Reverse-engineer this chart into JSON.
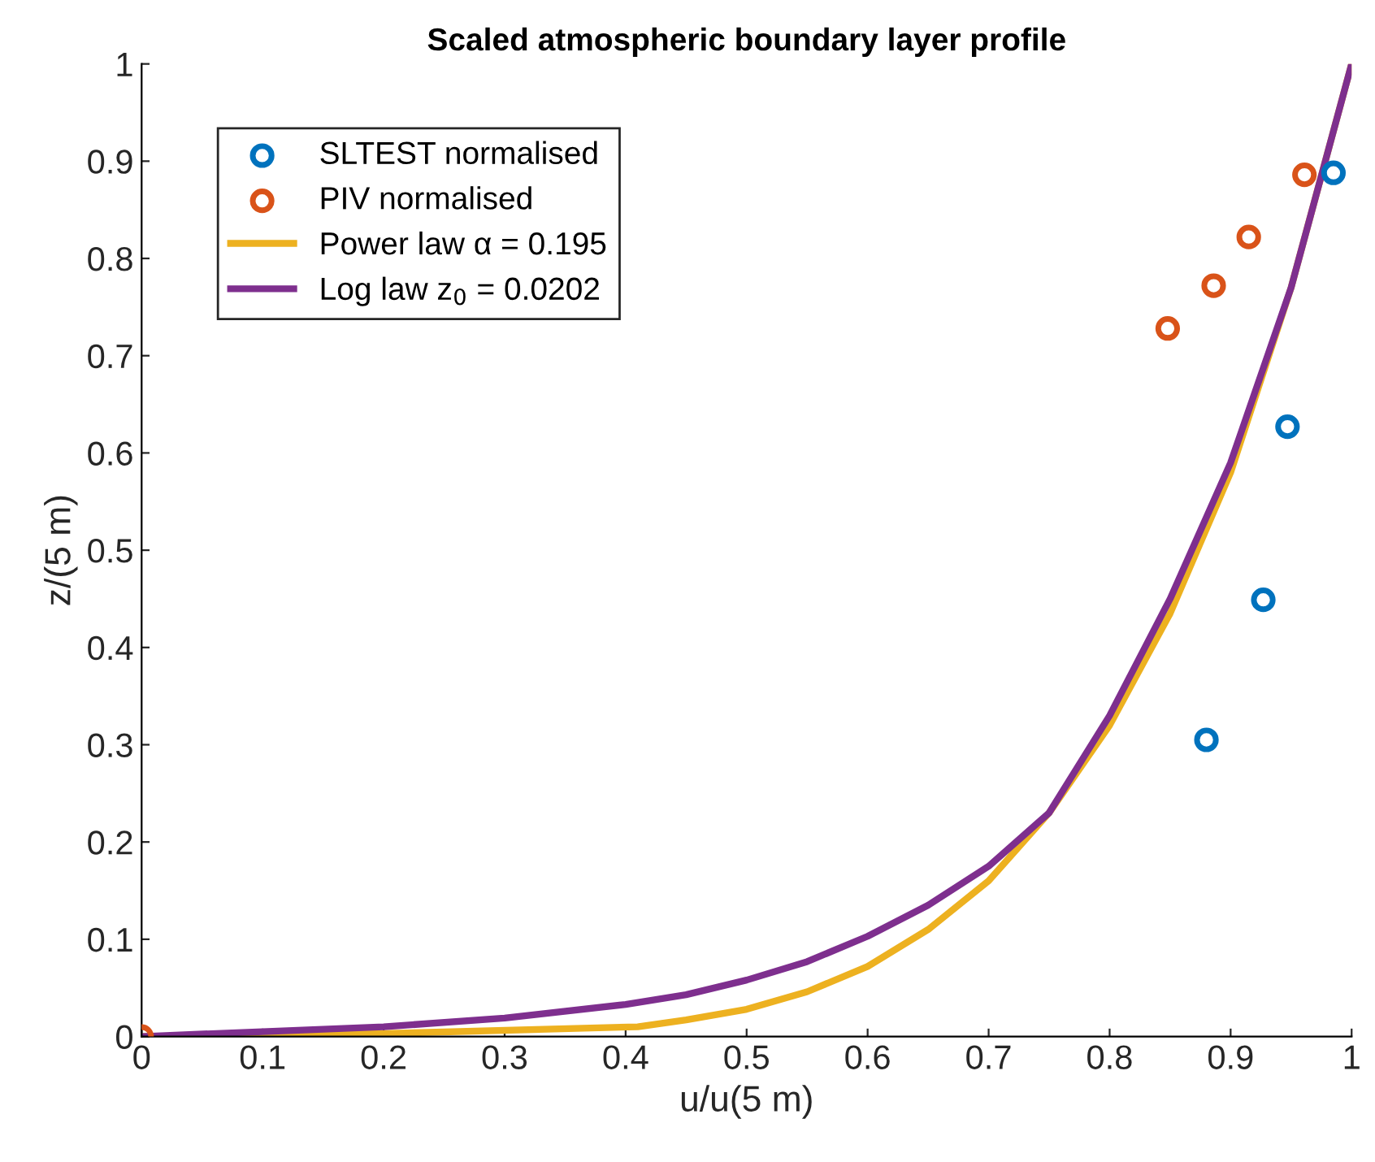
{
  "chart_data": {
    "type": "scatter",
    "title": "Scaled atmospheric boundary layer profile",
    "xlabel": "u/u(5 m)",
    "ylabel": "z/(5 m)",
    "series": [
      {
        "name": "SLTEST normalised",
        "color": "#0072bd",
        "x": [
          0.985,
          0.947,
          0.927,
          0.88
        ],
        "values": [
          0.888,
          0.627,
          0.449,
          0.305
        ]
      },
      {
        "name": "PIV normalised",
        "color": "#d95319",
        "x": [
          0,
          0.961,
          0.915,
          0.886,
          0.848
        ],
        "values": [
          0,
          0.886,
          0.822,
          0.772,
          0.728
        ]
      },
      {
        "name": "Power law α = 0.195",
        "type": "line",
        "marker": "none",
        "color": "#edb120",
        "x": [
          0,
          0.2,
          0.41,
          0.45,
          0.5,
          0.55,
          0.6,
          0.65,
          0.7,
          0.75,
          0.8,
          0.85,
          0.9,
          0.95,
          1
        ],
        "values": [
          0,
          0.003,
          0.01,
          0.017,
          0.028,
          0.046,
          0.072,
          0.11,
          0.16,
          0.23,
          0.32,
          0.435,
          0.58,
          0.77,
          1
        ]
      },
      {
        "name": "Log law z$_{0}$ = 0.0202",
        "type": "line",
        "marker": "none",
        "color": "#7e2f8e",
        "x": [
          0,
          0.1,
          0.2,
          0.3,
          0.4,
          0.45,
          0.5,
          0.55,
          0.6,
          0.65,
          0.7,
          0.75,
          0.8,
          0.85,
          0.9,
          0.95,
          1
        ],
        "values": [
          0,
          0.005,
          0.01,
          0.019,
          0.033,
          0.043,
          0.058,
          0.077,
          0.103,
          0.135,
          0.175,
          0.23,
          0.33,
          0.45,
          0.59,
          0.77,
          1
        ]
      }
    ],
    "marker": "circle",
    "xlim": [
      0,
      1
    ],
    "ylim": [
      0,
      1
    ],
    "xticks": [
      0,
      0.1,
      0.2,
      0.3,
      0.4,
      0.5,
      0.6,
      0.7,
      0.8,
      0.9,
      1
    ],
    "yticks": [
      0,
      0.1,
      0.2,
      0.3,
      0.4,
      0.5,
      0.6,
      0.7,
      0.8,
      0.9,
      1
    ],
    "grid": false,
    "legend": "top left"
  }
}
